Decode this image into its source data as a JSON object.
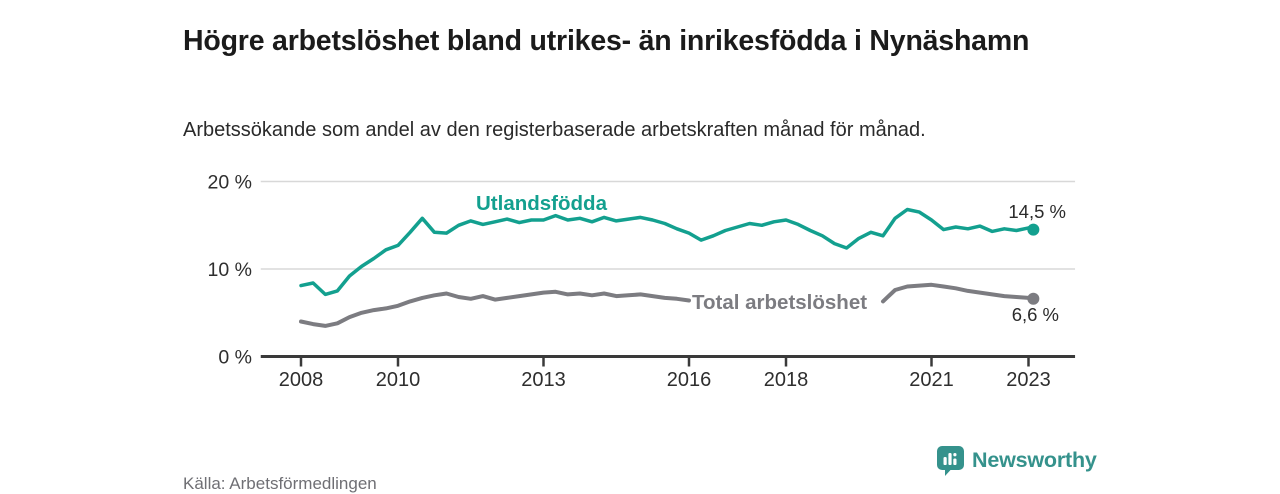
{
  "header": {
    "title": "Högre arbetslöshet bland utrikes- än inrikesfödda i Nynäshamn",
    "subtitle": "Arbetssökande som andel av den registerbaserade arbetskraften månad för månad."
  },
  "footer": {
    "source": "Källa: Arbetsförmedlingen",
    "logo_text": "Newsworthy",
    "logo_color": "#35928c",
    "logo_icon": "speech-bubble-bar-chart-icon"
  },
  "chart_data": {
    "type": "line",
    "title": "Högre arbetslöshet bland utrikes- än inrikesfödda i Nynäshamn",
    "xlabel": "",
    "ylabel": "",
    "x_unit": "decimal year",
    "xlim": [
      2007.17,
      2023.96
    ],
    "ylim": [
      0,
      21.5
    ],
    "grid": "horizontal",
    "x_ticks": [
      2008,
      2010,
      2013,
      2016,
      2018,
      2021,
      2023
    ],
    "x_tick_labels": [
      "2008",
      "2010",
      "2013",
      "2016",
      "2018",
      "2021",
      "2023"
    ],
    "y_ticks": [
      0,
      10,
      20
    ],
    "y_tick_labels": [
      "0 %",
      "10 %",
      "20 %"
    ],
    "axis_color": "#3a3a3a",
    "gridline_color": "#d8d8d8",
    "tick_label_color": "#2e2e2e",
    "end_label_color": "#2b2b2b",
    "x": [
      2008,
      2008.25,
      2008.5,
      2008.75,
      2009,
      2009.25,
      2009.5,
      2009.75,
      2010,
      2010.25,
      2010.5,
      2010.75,
      2011,
      2011.25,
      2011.5,
      2011.75,
      2012,
      2012.25,
      2012.5,
      2012.75,
      2013,
      2013.25,
      2013.5,
      2013.75,
      2014,
      2014.25,
      2014.5,
      2014.75,
      2015,
      2015.25,
      2015.5,
      2015.75,
      2016,
      2016.25,
      2016.5,
      2016.75,
      2017,
      2017.25,
      2017.5,
      2017.75,
      2018,
      2018.25,
      2018.5,
      2018.75,
      2019,
      2019.25,
      2019.5,
      2019.75,
      2020,
      2020.25,
      2020.5,
      2020.75,
      2021,
      2021.25,
      2021.5,
      2021.75,
      2022,
      2022.25,
      2022.5,
      2022.75,
      2023,
      2023.1
    ],
    "series": [
      {
        "name": "Utlandsfödda",
        "color": "#13a08f",
        "line_width": 3.5,
        "end_value": 14.5,
        "end_label": "14,5 %",
        "values": [
          8.1,
          8.4,
          7.1,
          7.5,
          9.2,
          10.3,
          11.2,
          12.2,
          12.7,
          14.2,
          15.8,
          14.2,
          14.1,
          15.0,
          15.5,
          15.1,
          15.4,
          15.7,
          15.3,
          15.6,
          15.6,
          16.1,
          15.6,
          15.8,
          15.4,
          15.9,
          15.5,
          15.7,
          15.9,
          15.6,
          15.2,
          14.6,
          14.1,
          13.3,
          13.8,
          14.4,
          14.8,
          15.2,
          15.0,
          15.4,
          15.6,
          15.1,
          14.4,
          13.8,
          12.9,
          12.4,
          13.5,
          14.2,
          13.8,
          15.8,
          16.8,
          16.5,
          15.6,
          14.5,
          14.8,
          14.6,
          14.9,
          14.3,
          14.6,
          14.4,
          14.7,
          14.5
        ]
      },
      {
        "name": "Total arbetslöshet",
        "color": "#7c7c81",
        "line_width": 4,
        "end_value": 6.6,
        "end_label": "6,6 %",
        "label_gap_x": [
          2016.05,
          2019.95
        ],
        "values": [
          4.0,
          3.7,
          3.5,
          3.8,
          4.5,
          5.0,
          5.3,
          5.5,
          5.8,
          6.3,
          6.7,
          7.0,
          7.2,
          6.8,
          6.6,
          6.9,
          6.5,
          6.7,
          6.9,
          7.1,
          7.3,
          7.4,
          7.1,
          7.2,
          7.0,
          7.2,
          6.9,
          7.0,
          7.1,
          6.9,
          6.7,
          6.6,
          6.4,
          6.1,
          6.0,
          6.2,
          6.2,
          6.3,
          6.1,
          6.2,
          6.1,
          6.0,
          5.9,
          6.0,
          5.9,
          5.8,
          5.9,
          6.1,
          6.3,
          7.6,
          8.0,
          8.1,
          8.2,
          8.0,
          7.8,
          7.5,
          7.3,
          7.1,
          6.9,
          6.8,
          6.7,
          6.6
        ]
      }
    ],
    "legend_position": "inline-labels-on-chart"
  }
}
